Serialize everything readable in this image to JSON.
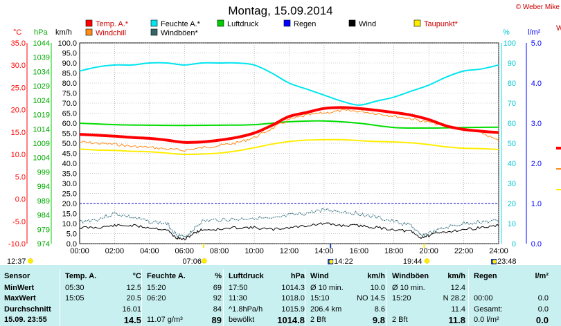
{
  "title": "Montag, 15.09.2014",
  "copyright": "© Weber Mike",
  "partial_label": "W",
  "legend": [
    {
      "label": "Temp. A.*",
      "color": "#ff0000"
    },
    {
      "label": "Feuchte A.*",
      "color": "#00e5ee"
    },
    {
      "label": "Luftdruck",
      "color": "#00cc00"
    },
    {
      "label": "Regen",
      "color": "#0000ff"
    },
    {
      "label": "Wind",
      "color": "#000000"
    },
    {
      "label": "Taupunkt*",
      "color": "#ffee00"
    },
    {
      "label": "Windchill",
      "color": "#ff8c1a"
    },
    {
      "label": "Windböen*",
      "color": "#336666"
    }
  ],
  "units": {
    "temp": "°C",
    "press": "hPa",
    "wind": "km/h",
    "hum": "%",
    "rain": "l/m²"
  },
  "chart_data": {
    "type": "line",
    "x_ticks": [
      "00:00",
      "02:00",
      "04:00",
      "06:00",
      "08:00",
      "10:00",
      "12:00",
      "14:00",
      "16:00",
      "18:00",
      "20:00",
      "22:00",
      "24:00"
    ],
    "x_range_hours": [
      0,
      24
    ],
    "axes": {
      "temp_c": {
        "range": [
          -10,
          35
        ],
        "ticks": [
          "35.0",
          "30.0",
          "25.0",
          "20.0",
          "15.0",
          "10.0",
          "5.0",
          "0.0",
          "-5.0",
          "-10.0"
        ],
        "color": "#ff0000"
      },
      "press_hpa": {
        "range": [
          974,
          1044
        ],
        "ticks": [
          "1044",
          "1039",
          "1034",
          "1029",
          "1024",
          "1019",
          "1014",
          "1009",
          "1004",
          "999",
          "994",
          "989",
          "984",
          "979",
          "974"
        ],
        "color": "#00cc00"
      },
      "wind_kmh": {
        "range": [
          0,
          100
        ],
        "ticks": [
          "100.0",
          "95.0",
          "90.0",
          "85.0",
          "80.0",
          "75.0",
          "70.0",
          "65.0",
          "60.0",
          "55.0",
          "50.0",
          "45.0",
          "40.0",
          "35.0",
          "30.0",
          "25.0",
          "20.0",
          "15.0",
          "10.0",
          "5.0",
          "0.0"
        ],
        "color": "#000000"
      },
      "hum_pct": {
        "range": [
          0,
          100
        ],
        "ticks": [
          "100",
          "90",
          "80",
          "70",
          "60",
          "50",
          "40",
          "30",
          "20",
          "10",
          "0"
        ],
        "color": "#00e5ee"
      },
      "rain_lm2": {
        "range": [
          0,
          5
        ],
        "ticks": [
          "5.0",
          "4.0",
          "3.0",
          "2.0",
          "1.0",
          "0.0"
        ],
        "color": "#0000ff"
      }
    },
    "series": [
      {
        "name": "Temp. A.*",
        "axis": "temp_c",
        "x": [
          0,
          1,
          2,
          3,
          4,
          5,
          6,
          7,
          8,
          9,
          10,
          11,
          12,
          13,
          14,
          15,
          16,
          17,
          18,
          19,
          20,
          21,
          22,
          23,
          24
        ],
        "y": [
          14.5,
          14.3,
          14.1,
          13.8,
          13.6,
          13.2,
          12.7,
          12.8,
          13.2,
          13.8,
          14.8,
          16.5,
          18.5,
          19.4,
          20.3,
          20.5,
          20.3,
          19.9,
          19.4,
          18.8,
          17.8,
          16.4,
          15.6,
          15.2,
          14.9
        ]
      },
      {
        "name": "Feuchte A.*",
        "axis": "hum_pct",
        "x": [
          0,
          1,
          2,
          3,
          4,
          5,
          6,
          7,
          8,
          9,
          10,
          11,
          12,
          13,
          14,
          15,
          16,
          17,
          18,
          19,
          20,
          21,
          22,
          23,
          24
        ],
        "y": [
          86,
          88,
          89,
          89,
          90,
          90,
          89,
          90,
          90,
          90,
          89,
          85,
          80,
          77,
          74,
          71,
          69,
          71,
          73,
          76,
          79,
          83,
          86,
          87,
          89
        ]
      },
      {
        "name": "Luftdruck",
        "axis": "press_hpa",
        "x": [
          0,
          2,
          4,
          6,
          8,
          10,
          12,
          14,
          16,
          18,
          20,
          22,
          24
        ],
        "y": [
          1016.0,
          1015.5,
          1015.3,
          1015.2,
          1015.3,
          1015.5,
          1016.5,
          1016.8,
          1016.0,
          1014.5,
          1014.3,
          1014.5,
          1014.6
        ]
      },
      {
        "name": "Taupunkt*",
        "axis": "temp_c",
        "x": [
          0,
          1,
          2,
          3,
          4,
          5,
          6,
          7,
          8,
          9,
          10,
          11,
          12,
          13,
          14,
          15,
          16,
          17,
          18,
          19,
          20,
          21,
          22,
          23,
          24
        ],
        "y": [
          11.2,
          11.0,
          10.9,
          10.7,
          10.6,
          10.3,
          10.0,
          10.1,
          10.3,
          10.8,
          11.5,
          12.3,
          12.9,
          13.2,
          13.3,
          13.3,
          13.1,
          12.9,
          12.8,
          12.6,
          12.2,
          11.7,
          11.4,
          11.3,
          11.1
        ]
      },
      {
        "name": "Windchill",
        "axis": "temp_c",
        "x": [
          0,
          1,
          2,
          3,
          4,
          5,
          6,
          7,
          8,
          9,
          10,
          11,
          12,
          13,
          14,
          15,
          16,
          17,
          18,
          19,
          20,
          21,
          22,
          23,
          24
        ],
        "y": [
          12.8,
          12.5,
          12.3,
          11.8,
          11.6,
          11.2,
          10.9,
          11.5,
          12.0,
          12.6,
          13.8,
          15.8,
          17.8,
          18.8,
          19.3,
          19.8,
          19.7,
          19.2,
          18.6,
          18.0,
          17.2,
          16.3,
          15.5,
          14.9,
          13.0
        ]
      },
      {
        "name": "Wind",
        "axis": "wind_kmh",
        "x": [
          0,
          1,
          2,
          3,
          4,
          5,
          5.5,
          6,
          6.5,
          7,
          8,
          9,
          10,
          11,
          12,
          13,
          14,
          15,
          16,
          17,
          18,
          19,
          19.5,
          20,
          21,
          22,
          23,
          24
        ],
        "y": [
          8,
          8,
          9,
          9,
          8,
          7,
          3,
          2,
          5,
          7,
          7,
          8,
          8,
          7,
          8,
          9,
          10,
          9,
          9,
          8,
          7,
          6,
          3,
          4,
          6,
          7,
          8,
          9
        ]
      },
      {
        "name": "Windböen*",
        "axis": "wind_kmh",
        "x": [
          0,
          1,
          2,
          3,
          4,
          5,
          5.5,
          6,
          6.5,
          7,
          8,
          9,
          10,
          11,
          12,
          13,
          14,
          15,
          16,
          17,
          18,
          19,
          19.5,
          20,
          21,
          22,
          23,
          24
        ],
        "y": [
          11,
          12,
          15,
          13,
          11,
          10,
          5,
          3,
          7,
          11,
          12,
          12,
          13,
          12,
          14,
          15,
          17,
          16,
          15,
          13,
          11,
          9,
          4,
          5,
          8,
          10,
          11,
          11
        ]
      }
    ],
    "rain_reference_lm2": 1.0
  },
  "bottom_times": {
    "left": "12:37",
    "sunrise": "07:06",
    "moonrise": "14:22",
    "sunset": "19:44",
    "moonset": "23:48"
  },
  "stats": {
    "col0": {
      "header": "Sensor",
      "rows": [
        "MinWert",
        "MaxWert",
        "Durchschnitt",
        "15.09. 23:55"
      ]
    },
    "temp": {
      "header": "Temp. A.",
      "unit": "°C",
      "t": [
        "05:30",
        "15:05",
        "",
        ""
      ],
      "v": [
        "12.5",
        "20.5",
        "16.01",
        "14.5"
      ]
    },
    "hum": {
      "header": "Feuchte A.",
      "unit": "%",
      "t": [
        "15:20",
        "06:20",
        "",
        "11.07 g/m³"
      ],
      "v": [
        "69",
        "92",
        "84",
        "89"
      ]
    },
    "press": {
      "header": "Luftdruck",
      "unit": "hPa",
      "t": [
        "17:50",
        "11:30",
        "^1.8hPa/h",
        "bewölkt"
      ],
      "v": [
        "1014.3",
        "1018.0",
        "1015.9",
        "1014.8"
      ]
    },
    "wind": {
      "header": "Wind",
      "unit": "km/h",
      "t": [
        "Ø 10 min.",
        "15:10",
        "206.4 km",
        "2 Bft"
      ],
      "v": [
        "10.0",
        "NO 14.5",
        "8.6",
        "9.8"
      ]
    },
    "gust": {
      "header": "Windböen",
      "unit": "km/h",
      "t": [
        "Ø 10 min.",
        "15:20",
        "",
        "2 Bft"
      ],
      "v": [
        "12.4",
        "N 28.2",
        "11.4",
        "11.8"
      ]
    },
    "rain": {
      "header": "Regen",
      "unit": "l/m²",
      "t": [
        "",
        "00:00",
        "Gesamt:",
        "0.0 l/m²"
      ],
      "v": [
        "",
        "0.0",
        "0.0",
        "0.0"
      ]
    }
  }
}
